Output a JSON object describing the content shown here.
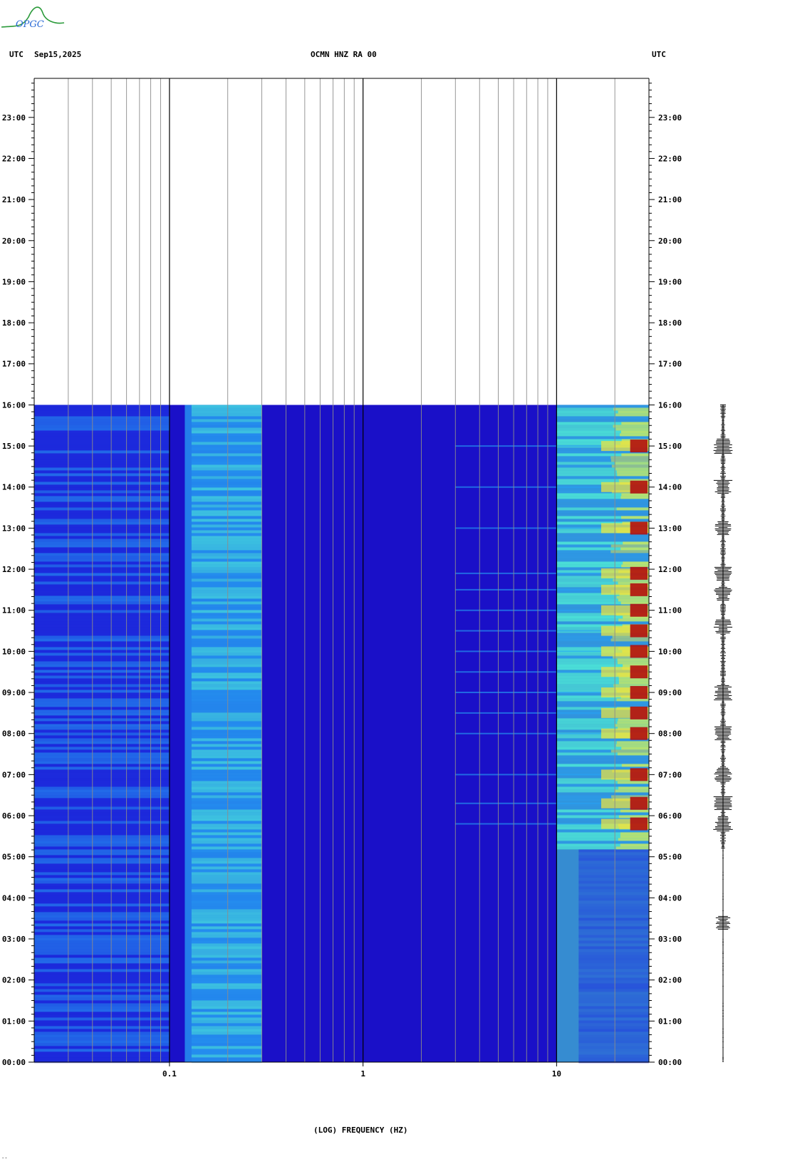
{
  "header": {
    "logo_text": "OPGC",
    "left_tz": "UTC",
    "date": "Sep15,2025",
    "station": "OCMN HNZ RA 00",
    "right_tz": "UTC"
  },
  "footnote": "..",
  "chart_data": {
    "type": "heatmap",
    "title": "OCMN HNZ RA 00",
    "date": "Sep15,2025",
    "xlabel": "(LOG) FREQUENCY (HZ)",
    "xscale": "log",
    "xlim": [
      0.02,
      30
    ],
    "x_tick_labels": [
      "0.1",
      "1",
      "10"
    ],
    "x_tick_values": [
      0.1,
      1,
      10
    ],
    "ylabel": "UTC",
    "ylim_hours": [
      0,
      24
    ],
    "y_tick_labels": [
      "00:00",
      "01:00",
      "02:00",
      "03:00",
      "04:00",
      "05:00",
      "06:00",
      "07:00",
      "08:00",
      "09:00",
      "10:00",
      "11:00",
      "12:00",
      "13:00",
      "14:00",
      "15:00",
      "16:00",
      "17:00",
      "18:00",
      "19:00",
      "20:00",
      "21:00",
      "22:00",
      "23:00"
    ],
    "data_end_hour": 16,
    "colors": {
      "background": "#1a10c8",
      "low": "#1e2fe0",
      "mid": "#27a3f5",
      "high": "#4ff2d8",
      "hot": "#f2e63a",
      "peak": "#b01010",
      "grid": "#8c8c8c",
      "grid_major": "#000000"
    },
    "energy_bands": [
      {
        "freq_range": [
          0.02,
          0.1
        ],
        "level": "low"
      },
      {
        "freq_range": [
          0.12,
          0.3
        ],
        "level": "mid"
      },
      {
        "freq_range": [
          0.3,
          10
        ],
        "level": "background"
      },
      {
        "freq_range": [
          10,
          30
        ],
        "level": "high"
      }
    ],
    "events_hours": [
      5.8,
      6.3,
      7.0,
      8.0,
      8.5,
      9.0,
      9.5,
      10.0,
      10.5,
      11.0,
      11.5,
      11.9,
      13.0,
      14.0,
      15.0
    ],
    "seismogram": {
      "quiet_until_hour": 5.2,
      "bursts_hours": [
        3.4,
        5.8,
        6.3,
        7.0,
        8.0,
        9.0,
        10.6,
        11.4,
        11.9,
        13.0,
        14.0,
        15.0
      ]
    }
  }
}
